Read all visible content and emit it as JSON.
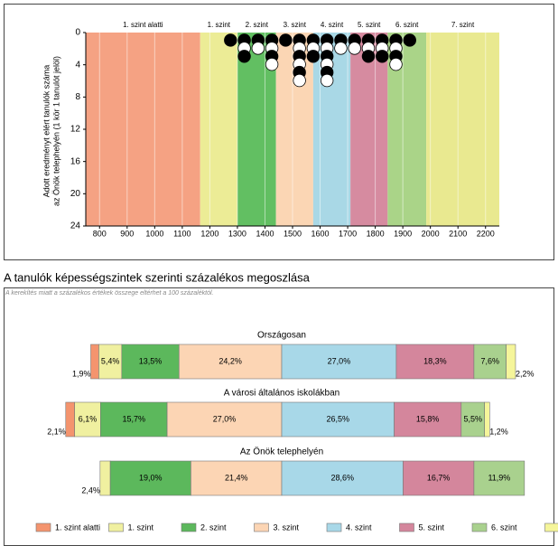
{
  "chart_data": [
    {
      "type": "dot",
      "ylabel": [
        "Adott eredményt elért tanulók száma",
        "az Önök telephelyén (1 kör 1 tanulót jelöl)"
      ],
      "x": [
        1275,
        1325,
        1375,
        1425,
        1475,
        1525,
        1575,
        1625,
        1675,
        1725,
        1775,
        1825,
        1875,
        1925
      ],
      "counts": [
        1,
        3,
        2,
        4,
        1,
        6,
        3,
        6,
        2,
        2,
        3,
        3,
        4,
        1
      ],
      "xlim": [
        750,
        2250
      ],
      "xticks": [
        800,
        900,
        1000,
        1100,
        1200,
        1300,
        1400,
        1500,
        1600,
        1700,
        1800,
        1900,
        2000,
        2100,
        2200
      ],
      "ylim": [
        0,
        24
      ],
      "yticks": [
        0,
        4,
        8,
        12,
        16,
        20,
        24
      ],
      "bands": [
        {
          "name": "1. szint alatti",
          "color": "#f5a283",
          "from": 750,
          "to": 1165
        },
        {
          "name": "1. szint",
          "color": "#ecec96",
          "from": 1165,
          "to": 1300
        },
        {
          "name": "2. szint",
          "color": "#62bf62",
          "from": 1300,
          "to": 1440
        },
        {
          "name": "3. szint",
          "color": "#fbd6b4",
          "from": 1440,
          "to": 1575
        },
        {
          "name": "4. szint",
          "color": "#a9d8e6",
          "from": 1575,
          "to": 1710
        },
        {
          "name": "5. szint",
          "color": "#d68ba0",
          "from": 1710,
          "to": 1845
        },
        {
          "name": "6. szint",
          "color": "#aad488",
          "from": 1845,
          "to": 1985
        },
        {
          "name": "7. szint",
          "color": "#e9e990",
          "from": 1985,
          "to": 2250
        }
      ]
    },
    {
      "type": "diverging-bar",
      "title": "A tanulók képességszintek szerinti százalékos megoszlása",
      "note": "A kerekítés miatt a százalékos értékek összege eltérhet a 100 százaléktól.",
      "categories": [
        "Országosan",
        "A városi általános iskolákban",
        "Az Önök telephelyén"
      ],
      "series": [
        {
          "name": "1. szint alatti",
          "color": "#f4946e",
          "values": [
            1.9,
            2.1,
            null
          ],
          "value_labels": [
            "1,9%",
            "2,1%",
            null
          ]
        },
        {
          "name": "1. szint",
          "color": "#f0f0a0",
          "values": [
            5.4,
            6.1,
            2.4
          ],
          "value_labels": [
            "5,4%",
            "6,1%",
            "2,4%"
          ]
        },
        {
          "name": "2. szint",
          "color": "#5cb85c",
          "values": [
            13.5,
            15.7,
            19.0
          ],
          "value_labels": [
            "13,5%",
            "15,7%",
            "19,0%"
          ]
        },
        {
          "name": "3. szint",
          "color": "#fcd5b4",
          "values": [
            24.2,
            27.0,
            21.4
          ],
          "value_labels": [
            "24,2%",
            "27,0%",
            "21,4%"
          ]
        },
        {
          "name": "4. szint",
          "color": "#a8d8e8",
          "values": [
            27.0,
            26.5,
            28.6
          ],
          "value_labels": [
            "27,0%",
            "26,5%",
            "28,6%"
          ]
        },
        {
          "name": "5. szint",
          "color": "#d4869c",
          "values": [
            18.3,
            15.8,
            16.7
          ],
          "value_labels": [
            "18,3%",
            "15,8%",
            "16,7%"
          ]
        },
        {
          "name": "6. szint",
          "color": "#a9d18e",
          "values": [
            7.6,
            5.5,
            11.9
          ],
          "value_labels": [
            "7,6%",
            "5,5%",
            "11,9%"
          ]
        },
        {
          "name": "7. szint",
          "color": "#f5f59a",
          "values": [
            2.2,
            1.2,
            null
          ],
          "value_labels": [
            "2,2%",
            "1,2%",
            null
          ]
        }
      ]
    }
  ]
}
